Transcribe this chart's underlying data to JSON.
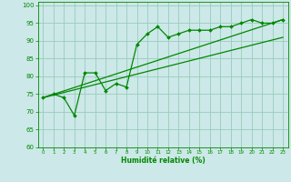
{
  "xlabel": "Humidité relative (%)",
  "bg_color": "#cce8e8",
  "grid_color": "#99ccbb",
  "line_color": "#008800",
  "ylim": [
    60,
    101
  ],
  "xlim": [
    -0.5,
    23.5
  ],
  "yticks": [
    60,
    65,
    70,
    75,
    80,
    85,
    90,
    95,
    100
  ],
  "xticks": [
    0,
    1,
    2,
    3,
    4,
    5,
    6,
    7,
    8,
    9,
    10,
    11,
    12,
    13,
    14,
    15,
    16,
    17,
    18,
    19,
    20,
    21,
    22,
    23
  ],
  "series1_x": [
    0,
    1,
    2,
    3,
    4,
    5,
    6,
    7,
    8,
    9,
    10,
    11,
    12,
    13,
    14,
    15,
    16,
    17,
    18,
    19,
    20,
    21,
    22,
    23
  ],
  "series1_y": [
    74,
    75,
    74,
    69,
    81,
    81,
    76,
    78,
    77,
    89,
    92,
    94,
    91,
    92,
    93,
    93,
    93,
    94,
    94,
    95,
    96,
    95,
    95,
    96
  ],
  "series2_x": [
    0,
    23
  ],
  "series2_y": [
    74,
    96
  ],
  "series3_x": [
    0,
    23
  ],
  "series3_y": [
    74,
    91
  ]
}
